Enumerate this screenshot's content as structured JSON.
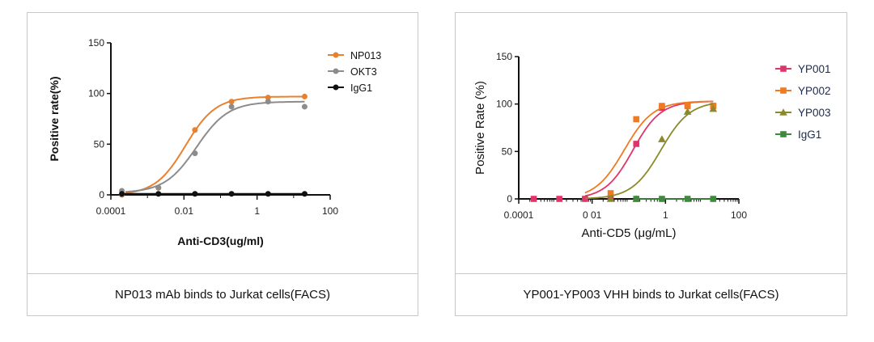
{
  "chart_data": [
    {
      "type": "scatter",
      "xscale": "log",
      "xlabel": "Anti-CD3(ug/ml)",
      "ylabel": "Positive rate(%)",
      "xlim": [
        0.0001,
        100
      ],
      "ylim": [
        0,
        150
      ],
      "xticks": [
        "0.0001",
        "0.01",
        "1",
        "100"
      ],
      "yticks": [
        "0",
        "50",
        "100",
        "150"
      ],
      "grid": false,
      "legend": "top-right",
      "caption": "NP013 mAb binds to Jurkat cells(FACS)",
      "x": [
        0.0002,
        0.002,
        0.02,
        0.2,
        2,
        20
      ],
      "series": [
        {
          "name": "NP013",
          "color": "#e8812f",
          "marker": "circle",
          "values": [
            0,
            7,
            64,
            92,
            96,
            97
          ],
          "fit": {
            "bottom": 0,
            "top": 97,
            "ec50": 0.011,
            "hill": 1.05
          }
        },
        {
          "name": "OKT3",
          "color": "#8c8c8c",
          "marker": "circle",
          "values": [
            4,
            7,
            41,
            87,
            92,
            87
          ],
          "fit": {
            "bottom": 2,
            "top": 92,
            "ec50": 0.022,
            "hill": 1.0
          }
        },
        {
          "name": "IgG1",
          "color": "#111111",
          "marker": "circle",
          "values": [
            1,
            1,
            1,
            1,
            1,
            1
          ],
          "fit": null
        }
      ]
    },
    {
      "type": "scatter",
      "xscale": "log",
      "xlabel": "Anti-CD5 (μg/mL)",
      "ylabel": "Positive Rate (%)",
      "xlim": [
        0.0001,
        100
      ],
      "ylim": [
        0,
        150
      ],
      "xticks": [
        "0.0001",
        "0 01",
        "1",
        "100"
      ],
      "yticks": [
        "0",
        "50",
        "100",
        "150"
      ],
      "grid": false,
      "legend": "right",
      "caption": "YP001-YP003 VHH binds to Jurkat cells(FACS)",
      "x": [
        0.000256,
        0.00128,
        0.0064,
        0.032,
        0.16,
        0.8,
        4,
        20
      ],
      "series": [
        {
          "name": "YP001",
          "color": "#e0356a",
          "marker": "square",
          "values": [
            0,
            0,
            0,
            1,
            58,
            96,
            98,
            98
          ],
          "fit": {
            "bottom": 0,
            "top": 103,
            "ec50": 0.13,
            "hill": 1.15
          }
        },
        {
          "name": "YP002",
          "color": "#f07a22",
          "marker": "square",
          "values": [
            null,
            null,
            null,
            6,
            84,
            98,
            98,
            98
          ],
          "fit": {
            "bottom": 0,
            "top": 103,
            "ec50": 0.075,
            "hill": 1.1
          }
        },
        {
          "name": "YP003",
          "color": "#8b8a2b",
          "marker": "triangle",
          "values": [
            null,
            null,
            null,
            0,
            0,
            63,
            92,
            95
          ],
          "fit": {
            "bottom": 0,
            "top": 103,
            "ec50": 0.75,
            "hill": 1.1
          }
        },
        {
          "name": "IgG1",
          "color": "#3f8a3f",
          "marker": "square",
          "values": [
            null,
            null,
            null,
            null,
            0,
            0,
            0,
            0
          ],
          "fit": null
        }
      ]
    }
  ]
}
